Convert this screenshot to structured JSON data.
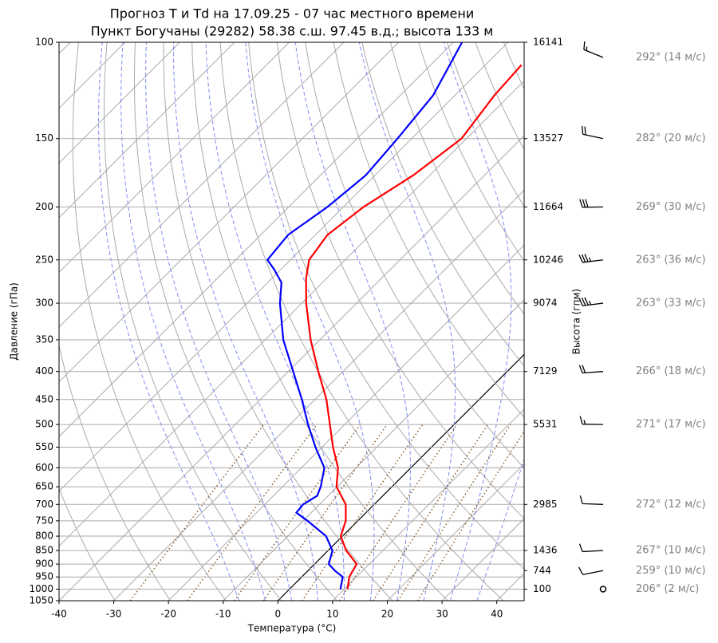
{
  "chart_data": {
    "type": "skewt",
    "title": "Прогноз T и Td на 17.09.25 - 07 час местного времени",
    "subtitle": "Пункт Богучаны (29282) 58.38 с.ш. 97.45 в.д.; высота 133 м",
    "xlabel": "Температура (°C)",
    "ylabel": "Давление (гПа)",
    "y2label": "Высота (гпм)",
    "xlim": [
      -40,
      45
    ],
    "xticks": [
      -40,
      -30,
      -20,
      -10,
      0,
      10,
      20,
      30,
      40
    ],
    "ylim": [
      1050,
      100
    ],
    "yscale": "log",
    "grid": true,
    "yticks": [
      100,
      150,
      200,
      250,
      300,
      350,
      400,
      450,
      500,
      550,
      600,
      650,
      700,
      750,
      800,
      850,
      900,
      950,
      1000,
      1050
    ],
    "series": [
      {
        "color": "#ff0000",
        "pressure": [
          1000,
          950,
          925,
          900,
          850,
          800,
          750,
          700,
          650,
          600,
          550,
          500,
          450,
          400,
          350,
          300,
          270,
          250,
          225,
          200,
          175,
          150,
          125,
          110
        ],
        "values": [
          10.6,
          8.7,
          8.2,
          7.7,
          3.3,
          -0.3,
          -2.2,
          -5.2,
          -10.1,
          -13.3,
          -18,
          -22.7,
          -27.9,
          -34.5,
          -41.7,
          -49.2,
          -53.8,
          -56.6,
          -57.8,
          -56.3,
          -53,
          -50.9,
          -52.8,
          -53.4
        ]
      },
      {
        "color": "#0000ff",
        "pressure": [
          1000,
          950,
          925,
          900,
          850,
          800,
          750,
          725,
          700,
          675,
          650,
          600,
          550,
          500,
          450,
          400,
          350,
          300,
          275,
          260,
          250,
          225,
          200,
          175,
          150,
          125,
          100
        ],
        "values": [
          9.3,
          7.5,
          4.9,
          2.6,
          0.8,
          -3,
          -9.2,
          -12.7,
          -13,
          -12,
          -13,
          -15.8,
          -21.2,
          -26.7,
          -32.4,
          -39.1,
          -46.7,
          -54,
          -57.5,
          -61.3,
          -64.2,
          -65,
          -62.9,
          -61.7,
          -62.6,
          -64,
          -68.4
        ]
      }
    ],
    "levels": [
      {
        "pressure": 100,
        "height": 16141,
        "direction": 292,
        "speed": 14,
        "label": "292° (14 м/с)"
      },
      {
        "pressure": 150,
        "height": 13527,
        "direction": 282,
        "speed": 20,
        "label": "282° (20 м/с)"
      },
      {
        "pressure": 200,
        "height": 11664,
        "direction": 269,
        "speed": 30,
        "label": "269° (30 м/с)"
      },
      {
        "pressure": 250,
        "height": 10246,
        "direction": 263,
        "speed": 36,
        "label": "263° (36 м/с)"
      },
      {
        "pressure": 300,
        "height": 9074,
        "direction": 263,
        "speed": 33,
        "label": "263° (33 м/с)"
      },
      {
        "pressure": 400,
        "height": 7129,
        "direction": 266,
        "speed": 18,
        "label": "266° (18 м/с)"
      },
      {
        "pressure": 500,
        "height": 5531,
        "direction": 271,
        "speed": 17,
        "label": "271° (17 м/с)"
      },
      {
        "pressure": 700,
        "height": 2985,
        "direction": 272,
        "speed": 12,
        "label": "272° (12 м/с)"
      },
      {
        "pressure": 850,
        "height": 1436,
        "direction": 267,
        "speed": 10,
        "label": "267° (10 м/с)"
      },
      {
        "pressure": 925,
        "height": 744,
        "direction": 259,
        "speed": 10,
        "label": "259° (10 м/с)"
      },
      {
        "pressure": 1000,
        "height": 100,
        "direction": 206,
        "speed": 2,
        "label": "206° (2 м/с)"
      }
    ]
  }
}
